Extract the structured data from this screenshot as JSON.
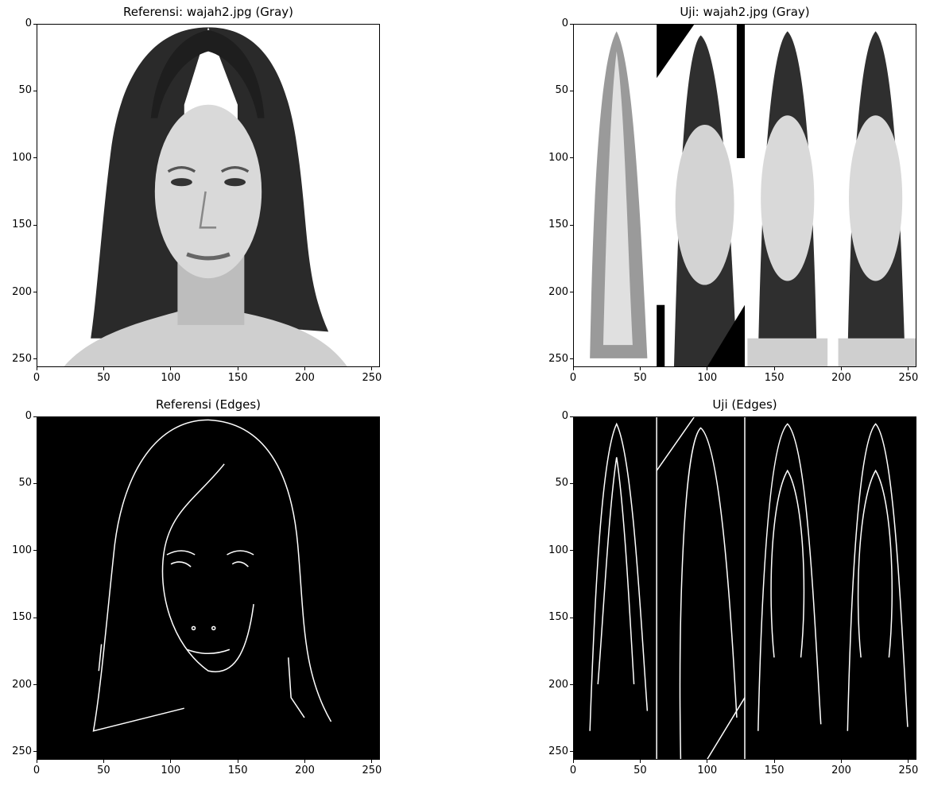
{
  "panels": [
    {
      "title": "Referensi: wajah2.jpg (Gray)",
      "kind": "gray-single"
    },
    {
      "title": "Uji: wajah2.jpg (Gray)",
      "kind": "gray-strip"
    },
    {
      "title": "Referensi (Edges)",
      "kind": "edges-single"
    },
    {
      "title": "Uji (Edges)",
      "kind": "edges-strip"
    }
  ],
  "axes": {
    "xticks": [
      "0",
      "50",
      "100",
      "150",
      "200",
      "250"
    ],
    "yticks": [
      "0",
      "50",
      "100",
      "150",
      "200",
      "250"
    ],
    "range": [
      0,
      256
    ]
  }
}
